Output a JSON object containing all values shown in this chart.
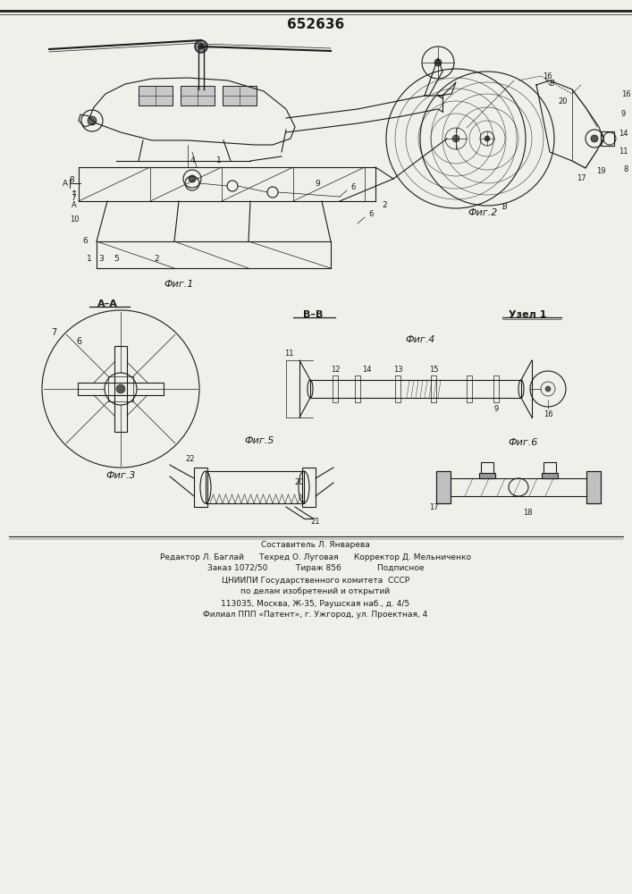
{
  "title": "652636",
  "background_color": "#f0f0eb",
  "line_color": "#1a1a1a",
  "fig_width": 7.07,
  "fig_height": 10.0,
  "footer_lines": [
    "Составитель Л. Январева",
    "Редактор Л. Баглай      Техред О. Луговая      Корректор Д. Мельниченко",
    "Заказ 1072/50           Тираж 856              Подписное",
    "ЦНИИПИ Государственного комитета  СССР",
    "по делам изобретений и открытий",
    "113035, Москва, Ж-35, Раушская наб., д. 4/5",
    "Филиал ППП «Патент», г. Ужгород, ул. Проектная, 4"
  ]
}
